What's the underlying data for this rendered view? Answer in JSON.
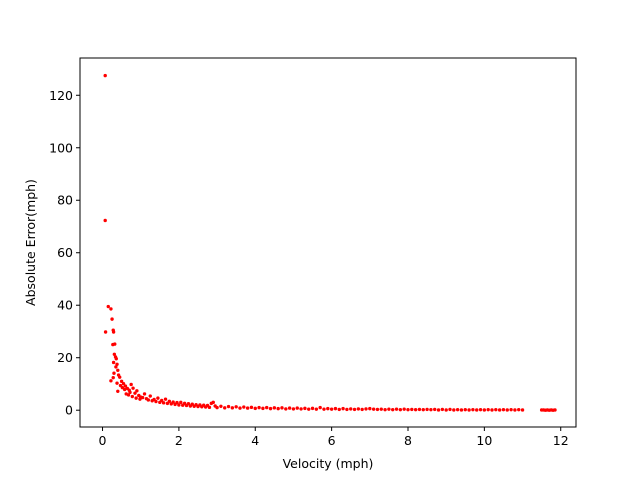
{
  "chart_data": {
    "type": "scatter",
    "title": "",
    "xlabel": "Velocity (mph)",
    "ylabel": "Absolute Error(mph)",
    "xlim": [
      -0.59,
      12.4
    ],
    "ylim": [
      -6.4,
      134.2
    ],
    "xticks": [
      0,
      2,
      4,
      6,
      8,
      10,
      12
    ],
    "xtick_labels": [
      "0",
      "2",
      "4",
      "6",
      "8",
      "10",
      "12"
    ],
    "yticks": [
      0,
      20,
      40,
      60,
      80,
      100,
      120
    ],
    "ytick_labels": [
      "0",
      "20",
      "40",
      "60",
      "80",
      "100",
      "120"
    ],
    "grid": false,
    "marker_color": "#ff0000",
    "series": [
      {
        "name": "",
        "points": [
          [
            0.07,
            127.5
          ],
          [
            0.07,
            72.3
          ],
          [
            0.08,
            29.8
          ],
          [
            0.15,
            39.5
          ],
          [
            0.22,
            38.6
          ],
          [
            0.25,
            34.7
          ],
          [
            0.28,
            30.5
          ],
          [
            0.29,
            29.8
          ],
          [
            0.27,
            25.0
          ],
          [
            0.32,
            25.2
          ],
          [
            0.31,
            21.3
          ],
          [
            0.34,
            20.3
          ],
          [
            0.36,
            19.6
          ],
          [
            0.29,
            18.2
          ],
          [
            0.38,
            17.5
          ],
          [
            0.35,
            16.5
          ],
          [
            0.4,
            15.2
          ],
          [
            0.3,
            14.1
          ],
          [
            0.42,
            13.4
          ],
          [
            0.28,
            12.4
          ],
          [
            0.45,
            12.6
          ],
          [
            0.22,
            11.2
          ],
          [
            0.5,
            11.0
          ],
          [
            0.38,
            10.3
          ],
          [
            0.55,
            10.1
          ],
          [
            0.47,
            9.4
          ],
          [
            0.6,
            9.2
          ],
          [
            0.52,
            8.6
          ],
          [
            0.65,
            8.3
          ],
          [
            0.58,
            7.9
          ],
          [
            0.7,
            7.6
          ],
          [
            0.4,
            7.2
          ],
          [
            0.75,
            9.8
          ],
          [
            0.8,
            8.4
          ],
          [
            0.72,
            6.8
          ],
          [
            0.85,
            6.5
          ],
          [
            0.62,
            6.2
          ],
          [
            0.9,
            7.4
          ],
          [
            0.68,
            5.8
          ],
          [
            0.95,
            5.6
          ],
          [
            0.78,
            5.2
          ],
          [
            1.0,
            5.0
          ],
          [
            0.88,
            4.6
          ],
          [
            1.05,
            4.8
          ],
          [
            1.1,
            6.2
          ],
          [
            0.98,
            4.2
          ],
          [
            1.15,
            4.4
          ],
          [
            1.2,
            3.9
          ],
          [
            1.25,
            5.4
          ],
          [
            1.3,
            3.6
          ],
          [
            1.35,
            4.1
          ],
          [
            1.4,
            3.3
          ],
          [
            1.45,
            4.6
          ],
          [
            1.5,
            3.0
          ],
          [
            1.55,
            3.7
          ],
          [
            1.6,
            2.8
          ],
          [
            1.65,
            4.2
          ],
          [
            1.7,
            2.6
          ],
          [
            1.75,
            3.4
          ],
          [
            1.8,
            2.4
          ],
          [
            1.85,
            3.1
          ],
          [
            1.9,
            2.2
          ],
          [
            1.95,
            2.9
          ],
          [
            2.0,
            2.0
          ],
          [
            2.05,
            3.0
          ],
          [
            2.1,
            1.9
          ],
          [
            2.15,
            2.6
          ],
          [
            2.2,
            1.8
          ],
          [
            2.25,
            2.5
          ],
          [
            2.3,
            1.6
          ],
          [
            2.35,
            2.3
          ],
          [
            2.4,
            1.5
          ],
          [
            2.45,
            2.1
          ],
          [
            2.5,
            1.4
          ],
          [
            2.55,
            2.0
          ],
          [
            2.6,
            1.3
          ],
          [
            2.65,
            1.9
          ],
          [
            2.7,
            1.2
          ],
          [
            2.75,
            1.8
          ],
          [
            2.8,
            1.1
          ],
          [
            2.85,
            2.6
          ],
          [
            2.9,
            3.0
          ],
          [
            2.95,
            1.6
          ],
          [
            3.0,
            1.0
          ],
          [
            3.1,
            1.5
          ],
          [
            3.2,
            0.9
          ],
          [
            3.3,
            1.4
          ],
          [
            3.4,
            0.9
          ],
          [
            3.5,
            1.3
          ],
          [
            3.6,
            0.8
          ],
          [
            3.7,
            1.2
          ],
          [
            3.8,
            0.8
          ],
          [
            3.9,
            1.1
          ],
          [
            4.0,
            0.7
          ],
          [
            4.1,
            1.0
          ],
          [
            4.2,
            0.7
          ],
          [
            4.3,
            1.0
          ],
          [
            4.4,
            0.6
          ],
          [
            4.5,
            0.9
          ],
          [
            4.6,
            0.6
          ],
          [
            4.7,
            0.9
          ],
          [
            4.8,
            0.5
          ],
          [
            4.9,
            0.8
          ],
          [
            5.0,
            0.5
          ],
          [
            5.1,
            0.8
          ],
          [
            5.2,
            0.5
          ],
          [
            5.3,
            0.7
          ],
          [
            5.4,
            0.4
          ],
          [
            5.5,
            0.7
          ],
          [
            5.6,
            0.4
          ],
          [
            5.7,
            1.0
          ],
          [
            5.8,
            0.4
          ],
          [
            5.9,
            0.6
          ],
          [
            6.0,
            0.4
          ],
          [
            6.1,
            0.6
          ],
          [
            6.2,
            0.3
          ],
          [
            6.3,
            0.6
          ],
          [
            6.4,
            0.3
          ],
          [
            6.5,
            0.5
          ],
          [
            6.6,
            0.3
          ],
          [
            6.7,
            0.5
          ],
          [
            6.8,
            0.3
          ],
          [
            6.9,
            0.5
          ],
          [
            7.0,
            0.6
          ],
          [
            7.1,
            0.4
          ],
          [
            7.2,
            0.3
          ],
          [
            7.3,
            0.4
          ],
          [
            7.4,
            0.2
          ],
          [
            7.5,
            0.4
          ],
          [
            7.6,
            0.2
          ],
          [
            7.7,
            0.4
          ],
          [
            7.8,
            0.2
          ],
          [
            7.9,
            0.4
          ],
          [
            8.0,
            0.2
          ],
          [
            8.1,
            0.3
          ],
          [
            8.2,
            0.2
          ],
          [
            8.3,
            0.3
          ],
          [
            8.4,
            0.2
          ],
          [
            8.5,
            0.3
          ],
          [
            8.6,
            0.2
          ],
          [
            8.7,
            0.3
          ],
          [
            8.8,
            0.1
          ],
          [
            8.9,
            0.3
          ],
          [
            9.0,
            0.1
          ],
          [
            9.1,
            0.3
          ],
          [
            9.2,
            0.1
          ],
          [
            9.3,
            0.2
          ],
          [
            9.4,
            0.1
          ],
          [
            9.5,
            0.2
          ],
          [
            9.6,
            0.1
          ],
          [
            9.7,
            0.2
          ],
          [
            9.8,
            0.1
          ],
          [
            9.9,
            0.2
          ],
          [
            10.0,
            0.1
          ],
          [
            10.1,
            0.2
          ],
          [
            10.2,
            0.1
          ],
          [
            10.3,
            0.2
          ],
          [
            10.4,
            0.1
          ],
          [
            10.5,
            0.2
          ],
          [
            10.6,
            0.1
          ],
          [
            10.7,
            0.2
          ],
          [
            10.8,
            0.1
          ],
          [
            10.9,
            0.2
          ],
          [
            11.0,
            0.1
          ],
          [
            11.5,
            0.1
          ],
          [
            11.55,
            0.1
          ],
          [
            11.6,
            0.0
          ],
          [
            11.65,
            0.1
          ],
          [
            11.7,
            0.0
          ],
          [
            11.75,
            0.1
          ],
          [
            11.8,
            0.0
          ],
          [
            11.85,
            0.1
          ]
        ]
      }
    ]
  }
}
